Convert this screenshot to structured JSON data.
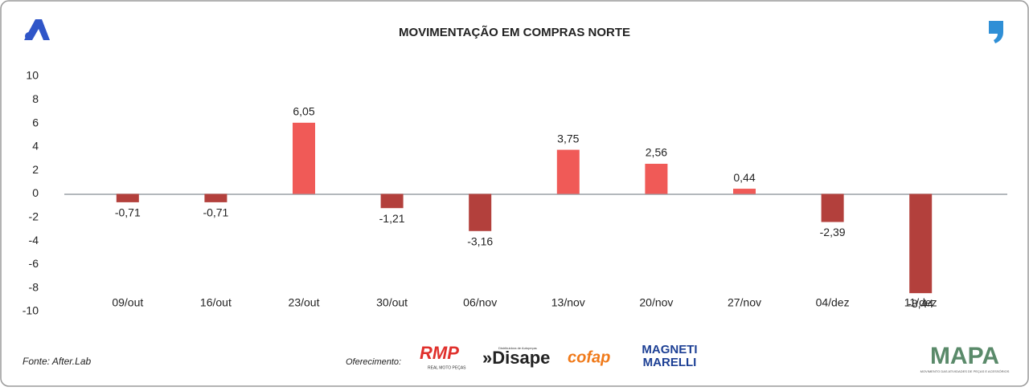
{
  "chart_data": {
    "type": "bar",
    "title": "MOVIMENTAÇÃO EM COMPRAS NORTE",
    "categories": [
      "09/out",
      "16/out",
      "23/out",
      "30/out",
      "06/nov",
      "13/nov",
      "20/nov",
      "27/nov",
      "04/dez",
      "11/dez"
    ],
    "values": [
      -0.71,
      -0.71,
      6.05,
      -1.21,
      -3.16,
      3.75,
      2.56,
      0.44,
      -2.39,
      -8.44
    ],
    "value_labels": [
      "-0,71",
      "-0,71",
      "6,05",
      "-1,21",
      "-3,16",
      "3,75",
      "2,56",
      "0,44",
      "-2,39",
      "-8,44"
    ],
    "color_positive": "#f05a57",
    "color_negative": "#b3403c",
    "ylim": [
      -10,
      10
    ],
    "yticks": [
      -10,
      -8,
      -6,
      -4,
      -2,
      0,
      2,
      4,
      6,
      8,
      10
    ],
    "grid": false
  },
  "source": "Fonte: After.Lab",
  "sponsor_label": "Oferecimento:",
  "logos": [
    "RMP",
    "REAL MOTO PEÇAS",
    "»Disape",
    "Distribuidora de Autopeças",
    "cofap",
    "MAGNETI",
    "MARELLI",
    "MAPA",
    "MOVIMENTO DAS ATIVIDADES DE PEÇAS E ACESSÓRIOS"
  ]
}
